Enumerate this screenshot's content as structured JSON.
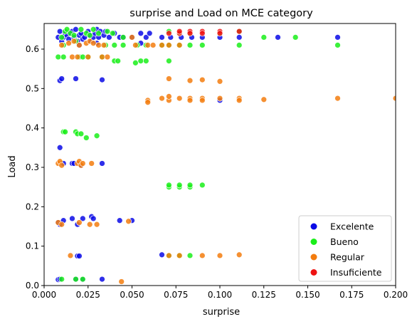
{
  "chart_data": {
    "type": "scatter",
    "title": "surprise and Load on MCE category",
    "xlabel": "surprise",
    "ylabel": "Load",
    "xlim": [
      0,
      0.2
    ],
    "ylim": [
      0,
      0.665
    ],
    "xticks": [
      0.0,
      0.025,
      0.05,
      0.075,
      0.1,
      0.125,
      0.15,
      0.175,
      0.2
    ],
    "xtick_labels": [
      "0.000",
      "0.025",
      "0.050",
      "0.075",
      "0.100",
      "0.125",
      "0.150",
      "0.175",
      "0.200"
    ],
    "yticks": [
      0.0,
      0.1,
      0.2,
      0.3,
      0.4,
      0.5,
      0.6
    ],
    "ytick_labels": [
      "0.0",
      "0.1",
      "0.2",
      "0.3",
      "0.4",
      "0.5",
      "0.6"
    ],
    "grid": false,
    "legend_position": "lower-right",
    "series": [
      {
        "name": "Excelente",
        "color": "#0a0ae6",
        "points": [
          [
            0.008,
            0.63
          ],
          [
            0.009,
            0.645
          ],
          [
            0.01,
            0.62
          ],
          [
            0.011,
            0.63
          ],
          [
            0.012,
            0.64
          ],
          [
            0.013,
            0.635
          ],
          [
            0.014,
            0.625
          ],
          [
            0.015,
            0.64
          ],
          [
            0.016,
            0.645
          ],
          [
            0.017,
            0.63
          ],
          [
            0.018,
            0.65
          ],
          [
            0.019,
            0.62
          ],
          [
            0.02,
            0.635
          ],
          [
            0.021,
            0.64
          ],
          [
            0.022,
            0.625
          ],
          [
            0.023,
            0.63
          ],
          [
            0.025,
            0.645
          ],
          [
            0.026,
            0.635
          ],
          [
            0.027,
            0.62
          ],
          [
            0.028,
            0.63
          ],
          [
            0.029,
            0.64
          ],
          [
            0.03,
            0.65
          ],
          [
            0.031,
            0.63
          ],
          [
            0.032,
            0.645
          ],
          [
            0.034,
            0.635
          ],
          [
            0.035,
            0.645
          ],
          [
            0.037,
            0.63
          ],
          [
            0.04,
            0.64
          ],
          [
            0.043,
            0.63
          ],
          [
            0.045,
            0.63
          ],
          [
            0.05,
            0.63
          ],
          [
            0.055,
            0.64
          ],
          [
            0.058,
            0.63
          ],
          [
            0.06,
            0.64
          ],
          [
            0.067,
            0.63
          ],
          [
            0.072,
            0.63
          ],
          [
            0.078,
            0.63
          ],
          [
            0.084,
            0.63
          ],
          [
            0.09,
            0.63
          ],
          [
            0.1,
            0.63
          ],
          [
            0.111,
            0.63
          ],
          [
            0.133,
            0.63
          ],
          [
            0.167,
            0.63
          ],
          [
            0.02,
            0.61
          ],
          [
            0.03,
            0.615
          ],
          [
            0.055,
            0.615
          ],
          [
            0.009,
            0.52
          ],
          [
            0.01,
            0.525
          ],
          [
            0.018,
            0.525
          ],
          [
            0.033,
            0.522
          ],
          [
            0.1,
            0.47
          ],
          [
            0.009,
            0.35
          ],
          [
            0.011,
            0.31
          ],
          [
            0.016,
            0.31
          ],
          [
            0.017,
            0.31
          ],
          [
            0.021,
            0.305
          ],
          [
            0.033,
            0.31
          ],
          [
            0.008,
            0.16
          ],
          [
            0.009,
            0.155
          ],
          [
            0.011,
            0.165
          ],
          [
            0.016,
            0.17
          ],
          [
            0.019,
            0.155
          ],
          [
            0.022,
            0.17
          ],
          [
            0.027,
            0.175
          ],
          [
            0.028,
            0.17
          ],
          [
            0.043,
            0.165
          ],
          [
            0.05,
            0.165
          ],
          [
            0.019,
            0.075
          ],
          [
            0.02,
            0.075
          ],
          [
            0.067,
            0.078
          ],
          [
            0.008,
            0.015
          ],
          [
            0.009,
            0.016
          ],
          [
            0.018,
            0.016
          ],
          [
            0.022,
            0.015
          ],
          [
            0.033,
            0.016
          ]
        ]
      },
      {
        "name": "Bueno",
        "color": "#1aee1a",
        "points": [
          [
            0.01,
            0.63
          ],
          [
            0.012,
            0.645
          ],
          [
            0.013,
            0.65
          ],
          [
            0.015,
            0.64
          ],
          [
            0.017,
            0.635
          ],
          [
            0.021,
            0.65
          ],
          [
            0.024,
            0.64
          ],
          [
            0.026,
            0.635
          ],
          [
            0.028,
            0.65
          ],
          [
            0.031,
            0.64
          ],
          [
            0.036,
            0.645
          ],
          [
            0.039,
            0.64
          ],
          [
            0.045,
            0.63
          ],
          [
            0.071,
            0.645
          ],
          [
            0.077,
            0.64
          ],
          [
            0.083,
            0.64
          ],
          [
            0.1,
            0.64
          ],
          [
            0.111,
            0.645
          ],
          [
            0.125,
            0.63
          ],
          [
            0.143,
            0.63
          ],
          [
            0.011,
            0.61
          ],
          [
            0.018,
            0.62
          ],
          [
            0.035,
            0.61
          ],
          [
            0.04,
            0.61
          ],
          [
            0.045,
            0.61
          ],
          [
            0.053,
            0.61
          ],
          [
            0.058,
            0.61
          ],
          [
            0.067,
            0.61
          ],
          [
            0.071,
            0.61
          ],
          [
            0.077,
            0.61
          ],
          [
            0.083,
            0.61
          ],
          [
            0.09,
            0.61
          ],
          [
            0.111,
            0.61
          ],
          [
            0.167,
            0.61
          ],
          [
            0.008,
            0.58
          ],
          [
            0.011,
            0.58
          ],
          [
            0.02,
            0.58
          ],
          [
            0.022,
            0.58
          ],
          [
            0.025,
            0.58
          ],
          [
            0.033,
            0.58
          ],
          [
            0.04,
            0.57
          ],
          [
            0.042,
            0.57
          ],
          [
            0.052,
            0.565
          ],
          [
            0.055,
            0.57
          ],
          [
            0.058,
            0.57
          ],
          [
            0.071,
            0.57
          ],
          [
            0.011,
            0.39
          ],
          [
            0.012,
            0.39
          ],
          [
            0.018,
            0.39
          ],
          [
            0.019,
            0.385
          ],
          [
            0.021,
            0.385
          ],
          [
            0.024,
            0.375
          ],
          [
            0.03,
            0.38
          ],
          [
            0.071,
            0.25
          ],
          [
            0.071,
            0.255
          ],
          [
            0.077,
            0.25
          ],
          [
            0.077,
            0.255
          ],
          [
            0.083,
            0.25
          ],
          [
            0.083,
            0.255
          ],
          [
            0.09,
            0.255
          ],
          [
            0.071,
            0.076
          ],
          [
            0.077,
            0.076
          ],
          [
            0.083,
            0.076
          ],
          [
            0.01,
            0.016
          ],
          [
            0.018,
            0.016
          ],
          [
            0.022,
            0.016
          ]
        ]
      },
      {
        "name": "Regular",
        "color": "#f37c0e",
        "points": [
          [
            0.01,
            0.61
          ],
          [
            0.014,
            0.615
          ],
          [
            0.017,
            0.62
          ],
          [
            0.02,
            0.61
          ],
          [
            0.024,
            0.615
          ],
          [
            0.026,
            0.62
          ],
          [
            0.028,
            0.615
          ],
          [
            0.031,
            0.61
          ],
          [
            0.034,
            0.61
          ],
          [
            0.05,
            0.63
          ],
          [
            0.052,
            0.61
          ],
          [
            0.059,
            0.61
          ],
          [
            0.062,
            0.61
          ],
          [
            0.067,
            0.61
          ],
          [
            0.071,
            0.61
          ],
          [
            0.077,
            0.61
          ],
          [
            0.016,
            0.58
          ],
          [
            0.019,
            0.58
          ],
          [
            0.025,
            0.58
          ],
          [
            0.033,
            0.58
          ],
          [
            0.036,
            0.58
          ],
          [
            0.071,
            0.525
          ],
          [
            0.083,
            0.52
          ],
          [
            0.09,
            0.522
          ],
          [
            0.1,
            0.518
          ],
          [
            0.059,
            0.47
          ],
          [
            0.059,
            0.465
          ],
          [
            0.067,
            0.475
          ],
          [
            0.071,
            0.47
          ],
          [
            0.071,
            0.48
          ],
          [
            0.077,
            0.475
          ],
          [
            0.083,
            0.475
          ],
          [
            0.083,
            0.47
          ],
          [
            0.09,
            0.475
          ],
          [
            0.09,
            0.47
          ],
          [
            0.1,
            0.475
          ],
          [
            0.111,
            0.475
          ],
          [
            0.111,
            0.47
          ],
          [
            0.125,
            0.472
          ],
          [
            0.167,
            0.475
          ],
          [
            0.2,
            0.475
          ],
          [
            0.008,
            0.31
          ],
          [
            0.009,
            0.315
          ],
          [
            0.01,
            0.305
          ],
          [
            0.019,
            0.31
          ],
          [
            0.02,
            0.315
          ],
          [
            0.021,
            0.305
          ],
          [
            0.022,
            0.31
          ],
          [
            0.027,
            0.31
          ],
          [
            0.008,
            0.16
          ],
          [
            0.01,
            0.155
          ],
          [
            0.02,
            0.16
          ],
          [
            0.026,
            0.155
          ],
          [
            0.03,
            0.155
          ],
          [
            0.048,
            0.163
          ],
          [
            0.015,
            0.076
          ],
          [
            0.071,
            0.076
          ],
          [
            0.077,
            0.076
          ],
          [
            0.09,
            0.076
          ],
          [
            0.1,
            0.076
          ],
          [
            0.111,
            0.078
          ],
          [
            0.044,
            0.01
          ]
        ]
      },
      {
        "name": "Insuficiente",
        "color": "#ee1212",
        "points": [
          [
            0.071,
            0.64
          ],
          [
            0.077,
            0.64
          ],
          [
            0.077,
            0.645
          ],
          [
            0.083,
            0.645
          ],
          [
            0.083,
            0.64
          ],
          [
            0.09,
            0.645
          ],
          [
            0.09,
            0.64
          ],
          [
            0.1,
            0.645
          ],
          [
            0.1,
            0.64
          ],
          [
            0.111,
            0.645
          ]
        ]
      }
    ]
  }
}
